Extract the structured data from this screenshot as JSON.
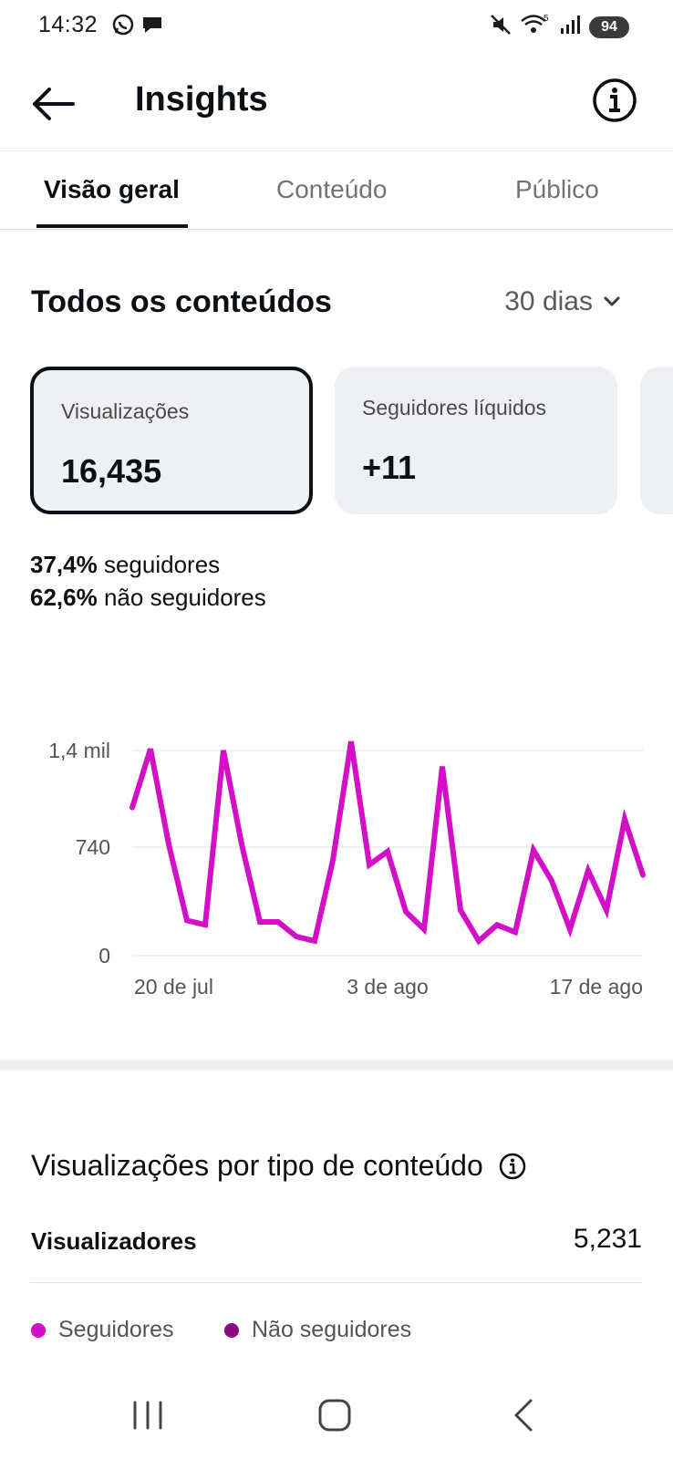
{
  "status_bar": {
    "time": "14:32",
    "left_icons": [
      "whatsapp-icon",
      "chat-bubble-icon"
    ],
    "right_icons": [
      "mute-icon",
      "wifi-icon",
      "signal-icon"
    ],
    "battery": "94"
  },
  "app_bar": {
    "title": "Insights",
    "back_icon": "arrow-left-icon",
    "info_icon": "info-icon"
  },
  "tabs": [
    {
      "label": "Visão geral",
      "active": true
    },
    {
      "label": "Conteúdo",
      "active": false
    },
    {
      "label": "Público",
      "active": false
    }
  ],
  "overview": {
    "title": "Todos os conteúdos",
    "range": "30 dias",
    "cards": [
      {
        "label": "Visualizações",
        "value": "16,435",
        "selected": true
      },
      {
        "label": "Seguidores líquidos",
        "value": "+11",
        "selected": false
      }
    ],
    "followers_pct": "37,4%",
    "followers_label": "seguidores",
    "non_followers_pct": "62,6%",
    "non_followers_label": "não seguidores"
  },
  "chart_data": {
    "type": "line",
    "y_ticks": [
      "1,4 mil",
      "740",
      "0"
    ],
    "ylim": [
      0,
      1480
    ],
    "x_ticks": [
      "20 de jul",
      "3 de ago",
      "17 de ago"
    ],
    "x_tick_index": [
      0,
      14,
      28
    ],
    "series": [
      {
        "color": "#d30fc7",
        "values": [
          1010,
          1410,
          760,
          240,
          210,
          1400,
          760,
          230,
          230,
          130,
          100,
          650,
          1460,
          620,
          710,
          300,
          180,
          1290,
          310,
          100,
          210,
          160,
          720,
          510,
          180,
          580,
          310,
          930,
          550
        ]
      }
    ],
    "grid": true
  },
  "content_type": {
    "title": "Visualizações por tipo de conteúdo",
    "row_label": "Visualizadores",
    "row_value": "5,231",
    "legend": [
      {
        "label": "Seguidores",
        "color": "#d30fc7"
      },
      {
        "label": "Não seguidores",
        "color": "#8a0a7e"
      }
    ]
  },
  "nav_bar": {
    "buttons": [
      "recent-apps-icon",
      "home-icon",
      "back-icon"
    ]
  }
}
